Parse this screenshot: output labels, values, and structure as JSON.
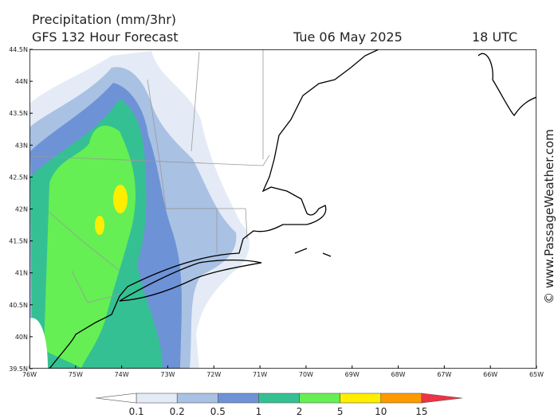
{
  "header": {
    "title": "Precipitation (mm/3hr)",
    "subtitle": "GFS 132 Hour Forecast",
    "date": "Tue 06 May 2025",
    "time": "18 UTC"
  },
  "map": {
    "lat_labels": [
      "44.5N",
      "44N",
      "43.5N",
      "43N",
      "42.5N",
      "42N",
      "41.5N",
      "41N",
      "40.5N",
      "40N",
      "39.5N"
    ],
    "lon_labels": [
      "76W",
      "75W",
      "74W",
      "73W",
      "72W",
      "71W",
      "70W",
      "69W",
      "68W",
      "67W",
      "66W",
      "65W"
    ]
  },
  "legend": {
    "labels": [
      0.1,
      0.2,
      0.5,
      1,
      2,
      5,
      10,
      15
    ],
    "colors": [
      "#ffffff",
      "#e4ebf6",
      "#a9c1e3",
      "#6e92d6",
      "#35c093",
      "#66ee55",
      "#ffee00",
      "#ff9900",
      "#ee3344"
    ]
  },
  "watermark": "© www.PassageWeather.com"
}
